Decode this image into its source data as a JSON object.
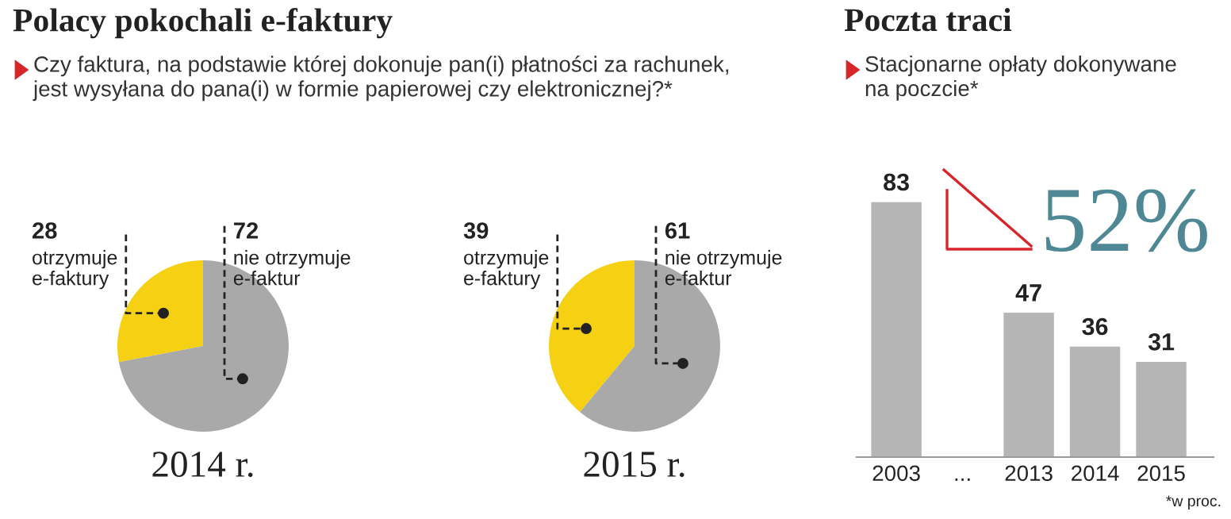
{
  "chart_data": [
    {
      "type": "pie",
      "title": "Polacy pokochali e-faktury",
      "subtitle": "Czy faktura, na podstawie której dokonuje pan(i) płatności za rachunek,\njest wysyłana do pana(i) w formie papierowej czy elektronicznej?*",
      "xlabel": "2014 r.",
      "categories": [
        "otrzymuje\ne-faktury",
        "nie otrzymuje\ne-faktur"
      ],
      "values": [
        28,
        72
      ],
      "colors": [
        "#f6d013",
        "#a9a9a9"
      ],
      "data_labels": true
    },
    {
      "type": "pie",
      "xlabel": "2015 r.",
      "categories": [
        "otrzymuje\ne-faktury",
        "nie otrzymuje\ne-faktur"
      ],
      "values": [
        39,
        61
      ],
      "colors": [
        "#f6d013",
        "#a9a9a9"
      ],
      "data_labels": true
    },
    {
      "type": "bar",
      "title": "Poczta traci",
      "subtitle": "Stacjonarne opłaty dokonywane\nna poczcie*",
      "categories": [
        "2003",
        "...",
        "2013",
        "2014",
        "2015"
      ],
      "values": [
        83,
        null,
        47,
        36,
        31
      ],
      "color": "#b5b5b5",
      "data_labels": true,
      "annotations": [
        "52%",
        "*w proc."
      ]
    }
  ]
}
